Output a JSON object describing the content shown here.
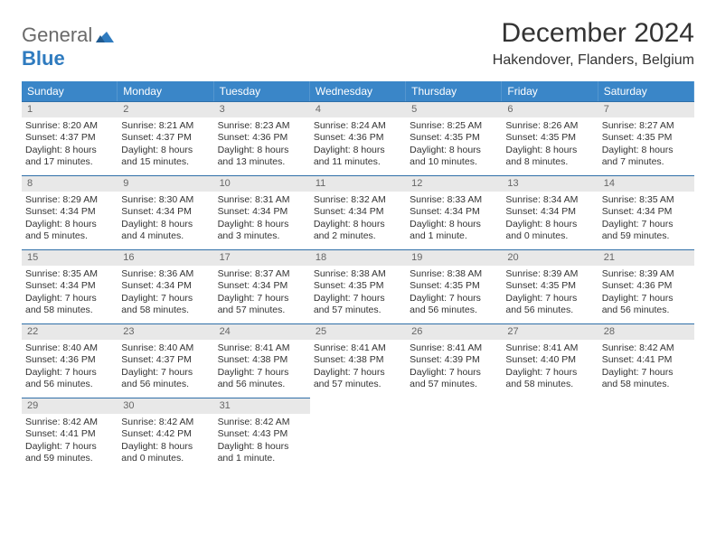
{
  "logo": {
    "text1": "General",
    "text2": "Blue"
  },
  "title": "December 2024",
  "location": "Hakendover, Flanders, Belgium",
  "dow": [
    "Sunday",
    "Monday",
    "Tuesday",
    "Wednesday",
    "Thursday",
    "Friday",
    "Saturday"
  ],
  "colors": {
    "header_bg": "#3a86c8",
    "header_text": "#ffffff",
    "row_divider": "#2f6fa8",
    "num_bg": "#e8e8e8",
    "num_text": "#666666",
    "body_text": "#333333",
    "logo_gray": "#6a6a6a",
    "logo_blue": "#2f7bbf"
  },
  "days": [
    {
      "n": 1,
      "sunrise": "8:20 AM",
      "sunset": "4:37 PM",
      "d1": "Daylight: 8 hours",
      "d2": "and 17 minutes."
    },
    {
      "n": 2,
      "sunrise": "8:21 AM",
      "sunset": "4:37 PM",
      "d1": "Daylight: 8 hours",
      "d2": "and 15 minutes."
    },
    {
      "n": 3,
      "sunrise": "8:23 AM",
      "sunset": "4:36 PM",
      "d1": "Daylight: 8 hours",
      "d2": "and 13 minutes."
    },
    {
      "n": 4,
      "sunrise": "8:24 AM",
      "sunset": "4:36 PM",
      "d1": "Daylight: 8 hours",
      "d2": "and 11 minutes."
    },
    {
      "n": 5,
      "sunrise": "8:25 AM",
      "sunset": "4:35 PM",
      "d1": "Daylight: 8 hours",
      "d2": "and 10 minutes."
    },
    {
      "n": 6,
      "sunrise": "8:26 AM",
      "sunset": "4:35 PM",
      "d1": "Daylight: 8 hours",
      "d2": "and 8 minutes."
    },
    {
      "n": 7,
      "sunrise": "8:27 AM",
      "sunset": "4:35 PM",
      "d1": "Daylight: 8 hours",
      "d2": "and 7 minutes."
    },
    {
      "n": 8,
      "sunrise": "8:29 AM",
      "sunset": "4:34 PM",
      "d1": "Daylight: 8 hours",
      "d2": "and 5 minutes."
    },
    {
      "n": 9,
      "sunrise": "8:30 AM",
      "sunset": "4:34 PM",
      "d1": "Daylight: 8 hours",
      "d2": "and 4 minutes."
    },
    {
      "n": 10,
      "sunrise": "8:31 AM",
      "sunset": "4:34 PM",
      "d1": "Daylight: 8 hours",
      "d2": "and 3 minutes."
    },
    {
      "n": 11,
      "sunrise": "8:32 AM",
      "sunset": "4:34 PM",
      "d1": "Daylight: 8 hours",
      "d2": "and 2 minutes."
    },
    {
      "n": 12,
      "sunrise": "8:33 AM",
      "sunset": "4:34 PM",
      "d1": "Daylight: 8 hours",
      "d2": "and 1 minute."
    },
    {
      "n": 13,
      "sunrise": "8:34 AM",
      "sunset": "4:34 PM",
      "d1": "Daylight: 8 hours",
      "d2": "and 0 minutes."
    },
    {
      "n": 14,
      "sunrise": "8:35 AM",
      "sunset": "4:34 PM",
      "d1": "Daylight: 7 hours",
      "d2": "and 59 minutes."
    },
    {
      "n": 15,
      "sunrise": "8:35 AM",
      "sunset": "4:34 PM",
      "d1": "Daylight: 7 hours",
      "d2": "and 58 minutes."
    },
    {
      "n": 16,
      "sunrise": "8:36 AM",
      "sunset": "4:34 PM",
      "d1": "Daylight: 7 hours",
      "d2": "and 58 minutes."
    },
    {
      "n": 17,
      "sunrise": "8:37 AM",
      "sunset": "4:34 PM",
      "d1": "Daylight: 7 hours",
      "d2": "and 57 minutes."
    },
    {
      "n": 18,
      "sunrise": "8:38 AM",
      "sunset": "4:35 PM",
      "d1": "Daylight: 7 hours",
      "d2": "and 57 minutes."
    },
    {
      "n": 19,
      "sunrise": "8:38 AM",
      "sunset": "4:35 PM",
      "d1": "Daylight: 7 hours",
      "d2": "and 56 minutes."
    },
    {
      "n": 20,
      "sunrise": "8:39 AM",
      "sunset": "4:35 PM",
      "d1": "Daylight: 7 hours",
      "d2": "and 56 minutes."
    },
    {
      "n": 21,
      "sunrise": "8:39 AM",
      "sunset": "4:36 PM",
      "d1": "Daylight: 7 hours",
      "d2": "and 56 minutes."
    },
    {
      "n": 22,
      "sunrise": "8:40 AM",
      "sunset": "4:36 PM",
      "d1": "Daylight: 7 hours",
      "d2": "and 56 minutes."
    },
    {
      "n": 23,
      "sunrise": "8:40 AM",
      "sunset": "4:37 PM",
      "d1": "Daylight: 7 hours",
      "d2": "and 56 minutes."
    },
    {
      "n": 24,
      "sunrise": "8:41 AM",
      "sunset": "4:38 PM",
      "d1": "Daylight: 7 hours",
      "d2": "and 56 minutes."
    },
    {
      "n": 25,
      "sunrise": "8:41 AM",
      "sunset": "4:38 PM",
      "d1": "Daylight: 7 hours",
      "d2": "and 57 minutes."
    },
    {
      "n": 26,
      "sunrise": "8:41 AM",
      "sunset": "4:39 PM",
      "d1": "Daylight: 7 hours",
      "d2": "and 57 minutes."
    },
    {
      "n": 27,
      "sunrise": "8:41 AM",
      "sunset": "4:40 PM",
      "d1": "Daylight: 7 hours",
      "d2": "and 58 minutes."
    },
    {
      "n": 28,
      "sunrise": "8:42 AM",
      "sunset": "4:41 PM",
      "d1": "Daylight: 7 hours",
      "d2": "and 58 minutes."
    },
    {
      "n": 29,
      "sunrise": "8:42 AM",
      "sunset": "4:41 PM",
      "d1": "Daylight: 7 hours",
      "d2": "and 59 minutes."
    },
    {
      "n": 30,
      "sunrise": "8:42 AM",
      "sunset": "4:42 PM",
      "d1": "Daylight: 8 hours",
      "d2": "and 0 minutes."
    },
    {
      "n": 31,
      "sunrise": "8:42 AM",
      "sunset": "4:43 PM",
      "d1": "Daylight: 8 hours",
      "d2": "and 1 minute."
    }
  ],
  "labels": {
    "sunrise_prefix": "Sunrise: ",
    "sunset_prefix": "Sunset: "
  }
}
